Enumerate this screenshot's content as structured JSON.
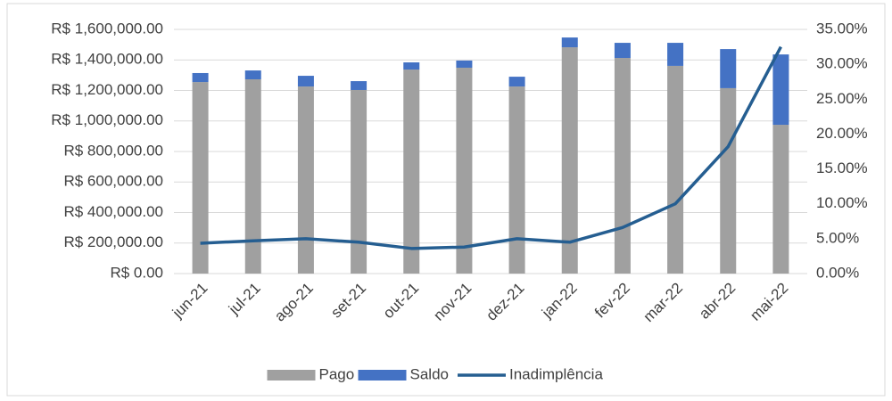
{
  "chart_data": {
    "type": "bar",
    "stacked": true,
    "categories": [
      "jun-21",
      "jul-21",
      "ago-21",
      "set-21",
      "out-21",
      "nov-21",
      "dez-21",
      "jan-22",
      "fev-22",
      "mar-22",
      "abr-22",
      "mai-22"
    ],
    "series": [
      {
        "name": "Pago",
        "type": "bar",
        "color": "#a0a0a0",
        "values": [
          1255000,
          1273000,
          1226000,
          1203000,
          1337000,
          1349000,
          1226000,
          1483000,
          1413000,
          1361000,
          1215000,
          975000
        ]
      },
      {
        "name": "Saldo",
        "type": "bar",
        "color": "#4472c4",
        "values": [
          59000,
          58000,
          70000,
          58000,
          47000,
          47000,
          64000,
          64000,
          99000,
          151000,
          256000,
          461000
        ]
      },
      {
        "name": "Inadimplência",
        "type": "line",
        "axis": "y2",
        "color": "#255e91",
        "values": [
          4.35,
          4.7,
          5.0,
          4.5,
          3.6,
          3.8,
          5.0,
          4.5,
          6.6,
          10.0,
          18.2,
          32.5
        ]
      }
    ],
    "ylim": [
      0,
      1600000
    ],
    "yticks": [
      {
        "value": 0,
        "label": "R$ 0.00"
      },
      {
        "value": 200000,
        "label": "R$ 200,000.00"
      },
      {
        "value": 400000,
        "label": "R$ 400,000.00"
      },
      {
        "value": 600000,
        "label": "R$ 600,000.00"
      },
      {
        "value": 800000,
        "label": "R$ 800,000.00"
      },
      {
        "value": 1000000,
        "label": "R$ 1,000,000.00"
      },
      {
        "value": 1200000,
        "label": "R$ 1,200,000.00"
      },
      {
        "value": 1400000,
        "label": "R$ 1,400,000.00"
      },
      {
        "value": 1600000,
        "label": "R$ 1,600,000.00"
      }
    ],
    "y2lim": [
      0,
      35
    ],
    "y2ticks": [
      {
        "value": 0,
        "label": "0.00%"
      },
      {
        "value": 5,
        "label": "5.00%"
      },
      {
        "value": 10,
        "label": "10.00%"
      },
      {
        "value": 15,
        "label": "15.00%"
      },
      {
        "value": 20,
        "label": "20.00%"
      },
      {
        "value": 25,
        "label": "25.00%"
      },
      {
        "value": 30,
        "label": "30.00%"
      },
      {
        "value": 35,
        "label": "35.00%"
      }
    ],
    "grid": true,
    "legend": "bottom"
  }
}
